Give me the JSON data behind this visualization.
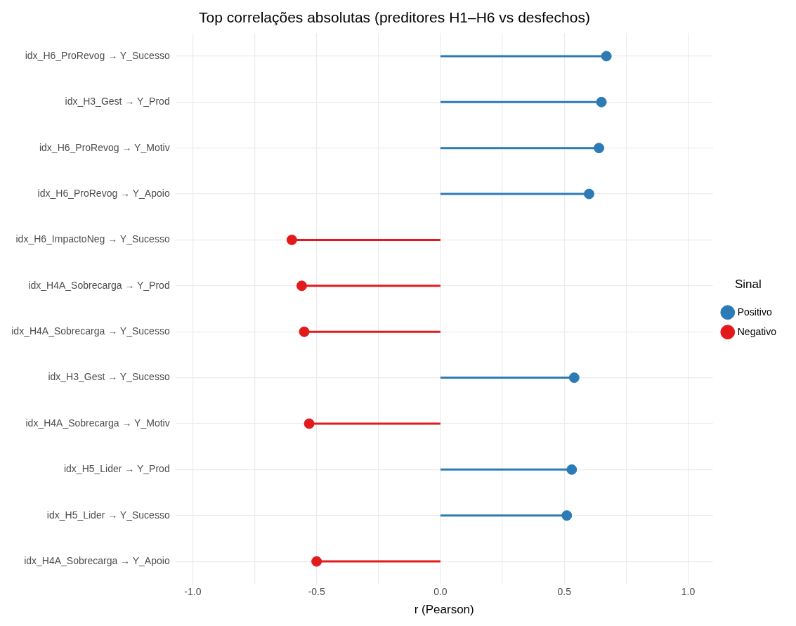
{
  "chart_data": {
    "type": "lollipop",
    "title": "Top correlações absolutas (preditores H1–H6 vs desfechos)",
    "xlabel": "r (Pearson)",
    "legend_title": "Sinal",
    "orientation": "horizontal",
    "categories": [
      "idx_H6_ProRevog → Y_Sucesso",
      "idx_H3_Gest → Y_Prod",
      "idx_H6_ProRevog → Y_Motiv",
      "idx_H6_ProRevog → Y_Apoio",
      "idx_H6_ImpactoNeg → Y_Sucesso",
      "idx_H4A_Sobrecarga → Y_Prod",
      "idx_H4A_Sobrecarga → Y_Sucesso",
      "idx_H3_Gest → Y_Sucesso",
      "idx_H4A_Sobrecarga → Y_Motiv",
      "idx_H5_Lider → Y_Prod",
      "idx_H5_Lider → Y_Sucesso",
      "idx_H4A_Sobrecarga → Y_Apoio"
    ],
    "series": [
      {
        "name": "Positivo",
        "color": "#2c7bb6",
        "values": [
          0.67,
          0.65,
          0.64,
          0.6,
          null,
          null,
          null,
          0.54,
          null,
          0.53,
          0.51,
          null
        ]
      },
      {
        "name": "Negativo",
        "color": "#e31a1c",
        "values": [
          null,
          null,
          null,
          null,
          -0.6,
          -0.56,
          -0.55,
          null,
          -0.53,
          null,
          null,
          -0.5
        ]
      }
    ],
    "xlim": [
      -1.07,
      1.1
    ],
    "xticks": [
      {
        "value": -1,
        "label": "-1.0"
      },
      {
        "value": -0.75,
        "label": null
      },
      -0.5,
      {
        "value": -0.25,
        "label": null
      },
      {
        "value": 0,
        "label": "0.0"
      },
      {
        "value": 0.25,
        "label": null
      },
      0.5,
      {
        "value": 0.75,
        "label": null
      },
      {
        "value": 1,
        "label": "1.0"
      }
    ],
    "grid": true,
    "legend": "right",
    "marker": "circle"
  }
}
